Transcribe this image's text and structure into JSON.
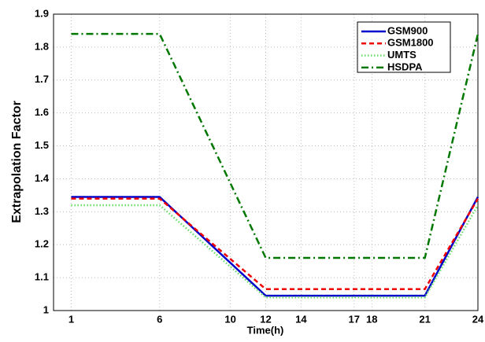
{
  "chart_data": {
    "type": "line",
    "x_label": "Time(h)",
    "y_label": "Extrapolation Factor",
    "x": [
      1,
      6,
      12,
      21,
      24
    ],
    "series": [
      {
        "name": "GSM900",
        "color": "#0000cc",
        "style": "solid",
        "values": [
          1.345,
          1.345,
          1.045,
          1.045,
          1.345
        ]
      },
      {
        "name": "GSM1800",
        "color": "#ee0000",
        "style": "dashed",
        "values": [
          1.34,
          1.34,
          1.065,
          1.065,
          1.34
        ]
      },
      {
        "name": "UMTS",
        "color": "#66dd66",
        "style": "dotted",
        "values": [
          1.32,
          1.32,
          1.04,
          1.04,
          1.32
        ]
      },
      {
        "name": "HSDPA",
        "color": "#007700",
        "style": "dashdot",
        "values": [
          1.84,
          1.84,
          1.16,
          1.16,
          1.84
        ]
      }
    ],
    "xlim": [
      0,
      24
    ],
    "xticks": [
      1,
      6,
      10,
      12,
      14,
      17,
      18,
      21,
      24
    ],
    "ylim": [
      1,
      1.9
    ],
    "yticks": [
      1,
      1.1,
      1.2,
      1.3,
      1.4,
      1.5,
      1.6,
      1.7,
      1.8,
      1.9
    ],
    "grid": true,
    "legend": "upper right"
  }
}
